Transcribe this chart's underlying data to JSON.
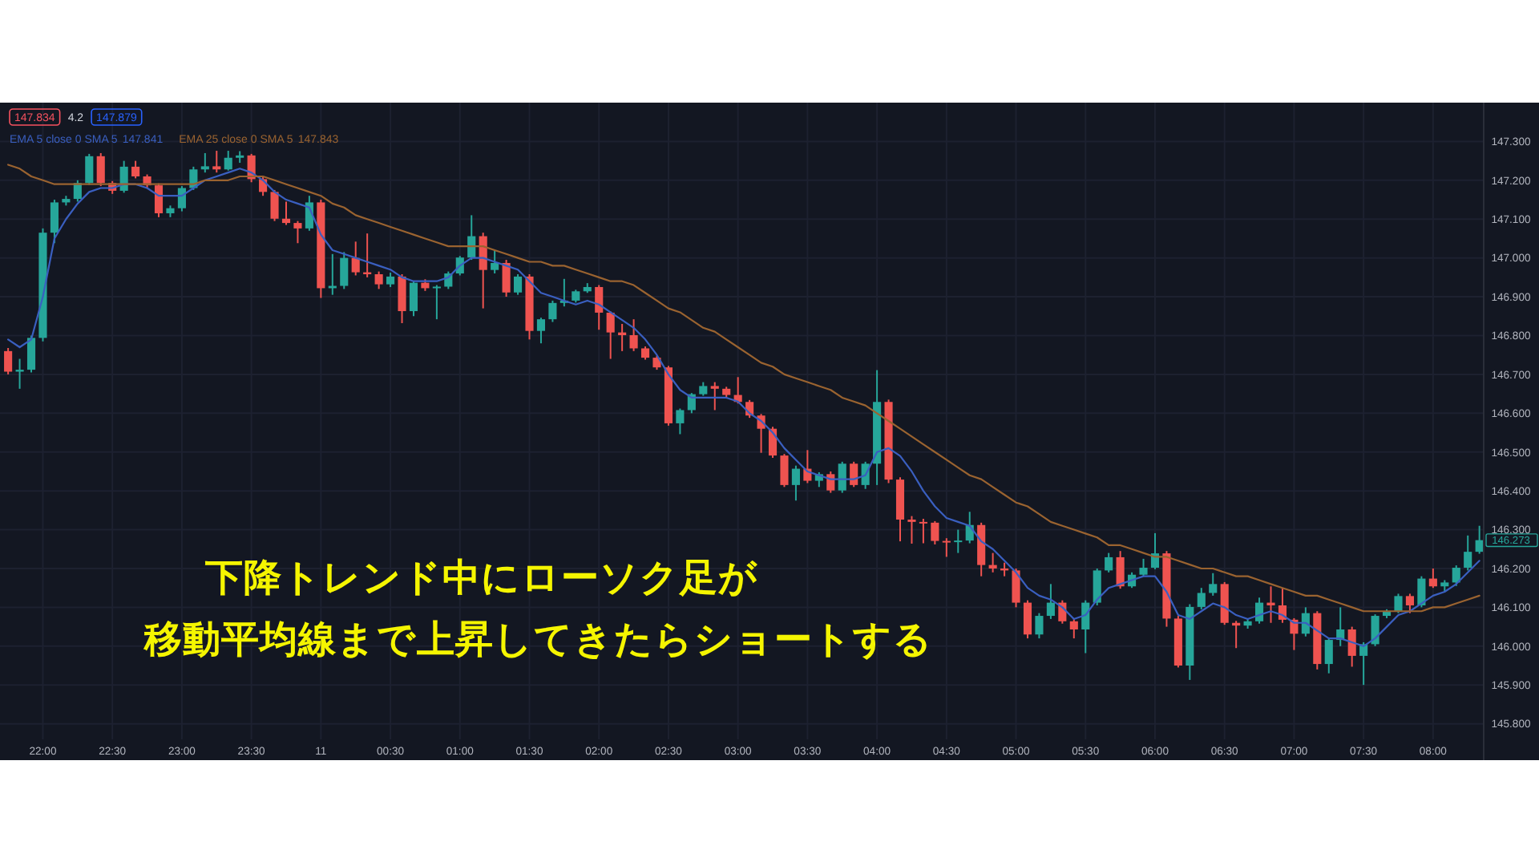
{
  "chart_data": {
    "type": "candlestick",
    "categories": [
      null,
      null,
      null,
      "22:00",
      null,
      null,
      null,
      null,
      null,
      "22:30",
      null,
      null,
      null,
      null,
      null,
      "23:00",
      null,
      null,
      null,
      null,
      null,
      "23:30",
      null,
      null,
      null,
      null,
      null,
      "11",
      null,
      null,
      null,
      null,
      null,
      "00:30",
      null,
      null,
      null,
      null,
      null,
      "01:00",
      null,
      null,
      null,
      null,
      null,
      "01:30",
      null,
      null,
      null,
      null,
      null,
      "02:00",
      null,
      null,
      null,
      null,
      null,
      "02:30",
      null,
      null,
      null,
      null,
      null,
      "03:00",
      null,
      null,
      null,
      null,
      null,
      "03:30",
      null,
      null,
      null,
      null,
      null,
      "04:00",
      null,
      null,
      null,
      null,
      null,
      "04:30",
      null,
      null,
      null,
      null,
      null,
      "05:00",
      null,
      null,
      null,
      null,
      null,
      "05:30",
      null,
      null,
      null,
      null,
      null,
      "06:00",
      null,
      null,
      null,
      null,
      null,
      "06:30",
      null,
      null,
      null,
      null,
      null,
      "07:00",
      null,
      null,
      null,
      null,
      null,
      "07:30",
      null,
      null,
      null,
      null,
      null,
      "08:00",
      null,
      null,
      null,
      null
    ],
    "ohlc": [
      [
        146.76,
        146.768,
        146.7,
        146.707
      ],
      [
        146.707,
        146.74,
        146.663,
        146.712
      ],
      [
        146.712,
        146.8,
        146.705,
        146.794
      ],
      [
        146.794,
        147.076,
        146.785,
        147.065
      ],
      [
        147.065,
        147.15,
        147.038,
        147.143
      ],
      [
        147.143,
        147.16,
        147.135,
        147.152
      ],
      [
        147.152,
        147.2,
        147.145,
        147.193
      ],
      [
        147.193,
        147.268,
        147.188,
        147.262
      ],
      [
        147.262,
        147.27,
        147.185,
        147.193
      ],
      [
        147.193,
        147.198,
        147.165,
        147.173
      ],
      [
        147.173,
        147.25,
        147.168,
        147.235
      ],
      [
        147.235,
        147.25,
        147.205,
        147.21
      ],
      [
        147.21,
        147.215,
        147.18,
        147.187
      ],
      [
        147.187,
        147.192,
        147.105,
        147.115
      ],
      [
        147.115,
        147.135,
        147.105,
        147.128
      ],
      [
        147.128,
        147.185,
        147.12,
        147.18
      ],
      [
        147.18,
        147.235,
        147.175,
        147.228
      ],
      [
        147.228,
        147.27,
        147.22,
        147.236
      ],
      [
        147.236,
        147.276,
        147.22,
        147.228
      ],
      [
        147.228,
        147.276,
        147.225,
        147.258
      ],
      [
        147.258,
        147.275,
        147.245,
        147.264
      ],
      [
        147.264,
        147.268,
        147.195,
        147.203
      ],
      [
        147.203,
        147.21,
        147.16,
        147.17
      ],
      [
        147.17,
        147.175,
        147.095,
        147.101
      ],
      [
        147.101,
        147.145,
        147.085,
        147.09
      ],
      [
        147.09,
        147.095,
        147.038,
        147.076
      ],
      [
        147.076,
        147.16,
        147.07,
        147.143
      ],
      [
        147.143,
        147.15,
        146.897,
        146.922
      ],
      [
        146.922,
        147.01,
        146.905,
        146.928
      ],
      [
        146.928,
        147.015,
        146.92,
        147.0
      ],
      [
        147.0,
        147.042,
        146.955,
        146.963
      ],
      [
        146.963,
        147.063,
        146.95,
        146.958
      ],
      [
        146.958,
        146.965,
        146.92,
        146.932
      ],
      [
        146.932,
        146.962,
        146.925,
        146.952
      ],
      [
        146.952,
        146.958,
        146.832,
        146.863
      ],
      [
        146.863,
        146.94,
        146.85,
        146.936
      ],
      [
        146.936,
        146.945,
        146.915,
        146.922
      ],
      [
        146.922,
        146.93,
        146.842,
        146.926
      ],
      [
        146.926,
        146.965,
        146.92,
        146.96
      ],
      [
        146.96,
        147.005,
        146.955,
        147.001
      ],
      [
        147.001,
        147.11,
        146.995,
        147.056
      ],
      [
        147.056,
        147.065,
        146.87,
        146.969
      ],
      [
        146.969,
        147.02,
        146.96,
        146.987
      ],
      [
        146.987,
        146.995,
        146.9,
        146.911
      ],
      [
        146.911,
        146.958,
        146.905,
        146.952
      ],
      [
        146.952,
        146.958,
        146.79,
        146.812
      ],
      [
        146.812,
        146.846,
        146.78,
        146.842
      ],
      [
        146.842,
        146.89,
        146.835,
        146.884
      ],
      [
        146.884,
        146.946,
        146.875,
        146.89
      ],
      [
        146.89,
        146.918,
        146.885,
        146.914
      ],
      [
        146.914,
        146.935,
        146.91,
        146.925
      ],
      [
        146.925,
        146.93,
        146.815,
        146.859
      ],
      [
        146.859,
        146.862,
        146.74,
        146.808
      ],
      [
        146.808,
        146.83,
        146.76,
        146.801
      ],
      [
        146.801,
        146.842,
        146.76,
        146.767
      ],
      [
        146.767,
        146.772,
        146.738,
        146.743
      ],
      [
        146.743,
        146.748,
        146.712,
        146.718
      ],
      [
        146.718,
        146.722,
        146.568,
        146.574
      ],
      [
        146.574,
        146.612,
        146.546,
        146.608
      ],
      [
        146.608,
        146.652,
        146.6,
        146.649
      ],
      [
        146.649,
        146.68,
        146.645,
        146.67
      ],
      [
        146.67,
        146.68,
        146.608,
        146.663
      ],
      [
        146.663,
        146.668,
        146.64,
        146.647
      ],
      [
        146.647,
        146.693,
        146.625,
        146.629
      ],
      [
        146.629,
        146.634,
        146.588,
        146.594
      ],
      [
        146.594,
        146.598,
        146.498,
        146.56
      ],
      [
        146.56,
        146.565,
        146.485,
        146.491
      ],
      [
        146.491,
        146.495,
        146.41,
        146.415
      ],
      [
        146.415,
        146.465,
        146.375,
        146.457
      ],
      [
        146.457,
        146.505,
        146.42,
        146.426
      ],
      [
        146.426,
        146.448,
        146.41,
        146.443
      ],
      [
        146.443,
        146.45,
        146.395,
        146.401
      ],
      [
        146.401,
        146.475,
        146.395,
        146.47
      ],
      [
        146.47,
        146.475,
        146.41,
        146.415
      ],
      [
        146.415,
        146.475,
        146.405,
        146.47
      ],
      [
        146.47,
        146.711,
        146.415,
        146.629
      ],
      [
        146.629,
        146.635,
        146.42,
        146.429
      ],
      [
        146.429,
        146.435,
        146.27,
        146.326
      ],
      [
        146.326,
        146.335,
        146.264,
        146.32
      ],
      [
        146.32,
        146.328,
        146.265,
        146.318
      ],
      [
        146.318,
        146.322,
        146.262,
        146.271
      ],
      [
        146.271,
        146.278,
        146.23,
        146.268
      ],
      [
        146.268,
        146.3,
        146.24,
        146.272
      ],
      [
        146.272,
        146.346,
        146.265,
        146.312
      ],
      [
        146.312,
        146.318,
        146.18,
        146.209
      ],
      [
        146.209,
        146.24,
        146.19,
        146.2
      ],
      [
        146.2,
        146.215,
        146.18,
        146.195
      ],
      [
        146.195,
        146.2,
        146.1,
        146.112
      ],
      [
        146.112,
        146.118,
        146.02,
        146.03
      ],
      [
        146.03,
        146.085,
        146.02,
        146.078
      ],
      [
        146.078,
        146.16,
        146.07,
        146.112
      ],
      [
        146.112,
        146.118,
        146.058,
        146.064
      ],
      [
        146.064,
        146.07,
        146.02,
        146.043
      ],
      [
        146.043,
        146.118,
        145.982,
        146.112
      ],
      [
        146.112,
        146.2,
        146.105,
        146.195
      ],
      [
        146.195,
        146.24,
        146.19,
        146.229
      ],
      [
        146.229,
        146.245,
        146.148,
        146.154
      ],
      [
        146.154,
        146.19,
        146.15,
        146.184
      ],
      [
        146.184,
        146.225,
        146.18,
        146.202
      ],
      [
        146.202,
        146.291,
        146.198,
        146.239
      ],
      [
        146.239,
        146.245,
        146.05,
        146.071
      ],
      [
        146.071,
        146.078,
        145.945,
        145.95
      ],
      [
        145.95,
        146.108,
        145.913,
        146.101
      ],
      [
        146.101,
        146.15,
        146.095,
        146.137
      ],
      [
        146.137,
        146.188,
        146.13,
        146.16
      ],
      [
        146.16,
        146.165,
        146.055,
        146.06
      ],
      [
        146.06,
        146.065,
        145.995,
        146.053
      ],
      [
        146.053,
        146.07,
        146.045,
        146.064
      ],
      [
        146.064,
        146.125,
        146.058,
        146.112
      ],
      [
        146.112,
        146.154,
        146.06,
        146.105
      ],
      [
        146.105,
        146.15,
        146.06,
        146.068
      ],
      [
        146.068,
        146.072,
        145.99,
        146.032
      ],
      [
        146.032,
        146.1,
        146.025,
        146.085
      ],
      [
        146.085,
        146.09,
        145.94,
        145.954
      ],
      [
        145.954,
        146.022,
        145.93,
        146.016
      ],
      [
        146.016,
        146.1,
        146.0,
        146.043
      ],
      [
        146.043,
        146.05,
        145.947,
        145.975
      ],
      [
        145.975,
        146.01,
        145.9,
        146.005
      ],
      [
        146.005,
        146.082,
        146.0,
        146.078
      ],
      [
        146.078,
        146.095,
        146.072,
        146.09
      ],
      [
        146.09,
        146.135,
        146.085,
        146.129
      ],
      [
        146.129,
        146.135,
        146.085,
        146.105
      ],
      [
        146.105,
        146.18,
        146.1,
        146.174
      ],
      [
        146.174,
        146.2,
        146.15,
        146.154
      ],
      [
        146.154,
        146.17,
        146.14,
        146.164
      ],
      [
        146.164,
        146.208,
        146.155,
        146.202
      ],
      [
        146.202,
        146.285,
        146.195,
        146.243
      ],
      [
        146.243,
        146.31,
        146.238,
        146.273
      ]
    ],
    "colors": [
      "#ef5350",
      "#26a69a",
      "#26a69a",
      "#26a69a",
      "#26a69a",
      "#26a69a",
      "#26a69a",
      "#26a69a",
      "#ef5350",
      "#ef5350",
      "#26a69a",
      "#ef5350",
      "#ef5350",
      "#ef5350",
      "#26a69a",
      "#26a69a",
      "#26a69a",
      "#26a69a",
      "#ef5350",
      "#26a69a",
      "#26a69a",
      "#ef5350",
      "#ef5350",
      "#ef5350",
      "#ef5350",
      "#ef5350",
      "#26a69a",
      "#ef5350",
      "#26a69a",
      "#26a69a",
      "#ef5350",
      "#ef5350",
      "#ef5350",
      "#26a69a",
      "#ef5350",
      "#26a69a",
      "#ef5350",
      "#26a69a",
      "#26a69a",
      "#26a69a",
      "#26a69a",
      "#ef5350",
      "#26a69a",
      "#ef5350",
      "#26a69a",
      "#ef5350",
      "#26a69a",
      "#26a69a",
      "#26a69a",
      "#26a69a",
      "#26a69a",
      "#ef5350",
      "#ef5350",
      "#ef5350",
      "#ef5350",
      "#ef5350",
      "#ef5350",
      "#ef5350",
      "#26a69a",
      "#26a69a",
      "#26a69a",
      "#ef5350",
      "#ef5350",
      "#ef5350",
      "#ef5350",
      "#ef5350",
      "#ef5350",
      "#ef5350",
      "#26a69a",
      "#ef5350",
      "#26a69a",
      "#ef5350",
      "#26a69a",
      "#ef5350",
      "#26a69a",
      "#26a69a",
      "#ef5350",
      "#ef5350",
      "#ef5350",
      "#ef5350",
      "#ef5350",
      "#ef5350",
      "#26a69a",
      "#26a69a",
      "#ef5350",
      "#ef5350",
      "#ef5350",
      "#ef5350",
      "#ef5350",
      "#26a69a",
      "#26a69a",
      "#ef5350",
      "#ef5350",
      "#26a69a",
      "#26a69a",
      "#26a69a",
      "#ef5350",
      "#26a69a",
      "#26a69a",
      "#26a69a",
      "#ef5350",
      "#ef5350",
      "#26a69a",
      "#26a69a",
      "#26a69a",
      "#ef5350",
      "#ef5350",
      "#26a69a",
      "#26a69a",
      "#ef5350",
      "#ef5350",
      "#ef5350",
      "#26a69a",
      "#ef5350",
      "#26a69a",
      "#26a69a",
      "#ef5350",
      "#26a69a",
      "#26a69a",
      "#26a69a",
      "#26a69a",
      "#ef5350",
      "#26a69a",
      "#ef5350",
      "#26a69a",
      "#26a69a",
      "#26a69a",
      "#26a69a"
    ],
    "series": [
      {
        "name": "EMA 5 close 0 SMA 5",
        "type": "line",
        "color": "#3a5fc0",
        "values": [
          146.79,
          146.77,
          146.79,
          146.9,
          147.05,
          147.1,
          147.14,
          147.17,
          147.18,
          147.18,
          147.19,
          147.19,
          147.18,
          147.16,
          147.16,
          147.16,
          147.18,
          147.2,
          147.21,
          147.22,
          147.23,
          147.22,
          147.2,
          147.17,
          147.15,
          147.14,
          147.13,
          147.06,
          147.02,
          147.01,
          147.0,
          146.99,
          146.98,
          146.97,
          146.95,
          146.94,
          146.94,
          146.94,
          146.95,
          146.98,
          147.0,
          147.0,
          146.99,
          146.98,
          146.97,
          146.94,
          146.91,
          146.9,
          146.89,
          146.88,
          146.89,
          146.88,
          146.86,
          146.84,
          146.82,
          146.79,
          146.75,
          146.7,
          146.66,
          146.64,
          146.64,
          146.64,
          146.64,
          146.63,
          146.6,
          146.58,
          146.55,
          146.51,
          146.48,
          146.45,
          146.44,
          146.43,
          146.43,
          146.43,
          146.44,
          146.5,
          146.51,
          146.49,
          146.45,
          146.4,
          146.36,
          146.33,
          146.32,
          146.31,
          146.27,
          146.25,
          146.22,
          146.19,
          146.15,
          146.13,
          146.12,
          146.1,
          146.07,
          146.08,
          146.12,
          146.15,
          146.16,
          146.17,
          146.18,
          146.18,
          146.14,
          146.08,
          146.07,
          146.09,
          146.11,
          146.1,
          146.08,
          146.07,
          146.08,
          146.09,
          146.08,
          146.06,
          146.06,
          146.04,
          146.02,
          146.02,
          146.01,
          146.0,
          146.02,
          146.05,
          146.08,
          146.09,
          146.11,
          146.13,
          146.14,
          146.16,
          146.19,
          146.22
        ]
      },
      {
        "name": "EMA 25 close 0 SMA 5",
        "type": "line",
        "color": "#9a6330",
        "values": [
          147.24,
          147.23,
          147.21,
          147.2,
          147.19,
          147.19,
          147.19,
          147.19,
          147.19,
          147.19,
          147.19,
          147.19,
          147.19,
          147.19,
          147.19,
          147.19,
          147.19,
          147.2,
          147.2,
          147.2,
          147.21,
          147.21,
          147.21,
          147.2,
          147.19,
          147.18,
          147.17,
          147.16,
          147.14,
          147.13,
          147.11,
          147.1,
          147.09,
          147.08,
          147.07,
          147.06,
          147.05,
          147.04,
          147.03,
          147.03,
          147.03,
          147.03,
          147.02,
          147.01,
          147.0,
          146.99,
          146.99,
          146.98,
          146.98,
          146.97,
          146.96,
          146.95,
          146.94,
          146.94,
          146.93,
          146.91,
          146.89,
          146.87,
          146.86,
          146.84,
          146.82,
          146.81,
          146.79,
          146.77,
          146.75,
          146.73,
          146.72,
          146.7,
          146.69,
          146.68,
          146.67,
          146.66,
          146.64,
          146.63,
          146.62,
          146.6,
          146.58,
          146.56,
          146.54,
          146.52,
          146.5,
          146.48,
          146.46,
          146.44,
          146.43,
          146.41,
          146.39,
          146.37,
          146.36,
          146.34,
          146.32,
          146.31,
          146.3,
          146.29,
          146.28,
          146.26,
          146.26,
          146.25,
          146.24,
          146.23,
          146.23,
          146.22,
          146.21,
          146.2,
          146.2,
          146.19,
          146.18,
          146.18,
          146.17,
          146.16,
          146.15,
          146.14,
          146.13,
          146.13,
          146.12,
          146.11,
          146.1,
          146.09,
          146.09,
          146.09,
          146.09,
          146.09,
          146.09,
          146.1,
          146.1,
          146.11,
          146.12,
          146.13
        ]
      }
    ],
    "ylim": [
      145.76,
      147.4
    ],
    "yticks": [
      {
        "value": 145.8,
        "label": "145.800"
      },
      {
        "value": 145.9,
        "label": "145.900"
      },
      {
        "value": 146.0,
        "label": "146.000"
      },
      {
        "value": 146.1,
        "label": "146.100"
      },
      {
        "value": 146.2,
        "label": "146.200"
      },
      {
        "value": 146.3,
        "label": "146.300"
      },
      {
        "value": 146.4,
        "label": "146.400"
      },
      {
        "value": 146.5,
        "label": "146.500"
      },
      {
        "value": 146.6,
        "label": "146.600"
      },
      {
        "value": 146.7,
        "label": "146.700"
      },
      {
        "value": 146.8,
        "label": "146.800"
      },
      {
        "value": 146.9,
        "label": "146.900"
      },
      {
        "value": 147.0,
        "label": "147.000"
      },
      {
        "value": 147.1,
        "label": "147.100"
      },
      {
        "value": 147.2,
        "label": "147.200"
      },
      {
        "value": 147.3,
        "label": "147.300"
      }
    ],
    "grid": true,
    "legend": "top left",
    "annotations": [
      "147.834",
      "4.2",
      "147.879",
      "147.841",
      "147.843",
      "146.273",
      "下降トレンド中にローソク足が",
      "移動平均線まで上昇してきたらショートする"
    ]
  }
}
